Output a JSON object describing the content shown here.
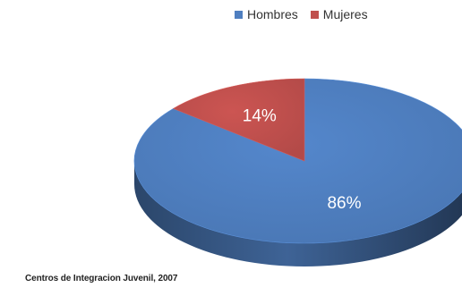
{
  "legend": {
    "items": [
      {
        "label": "Hombres",
        "color": "#4f7fc0"
      },
      {
        "label": "Mujeres",
        "color": "#c0504d"
      }
    ]
  },
  "caption": "Centros de Integracion Juvenil, 2007",
  "chart_data": {
    "type": "pie",
    "style": "3d",
    "legend_position": "top",
    "categories": [
      "Hombres",
      "Mujeres"
    ],
    "values": [
      86,
      14
    ],
    "labels": [
      "86%",
      "14%"
    ],
    "colors": [
      "#4f7fc0",
      "#c0504d"
    ]
  }
}
